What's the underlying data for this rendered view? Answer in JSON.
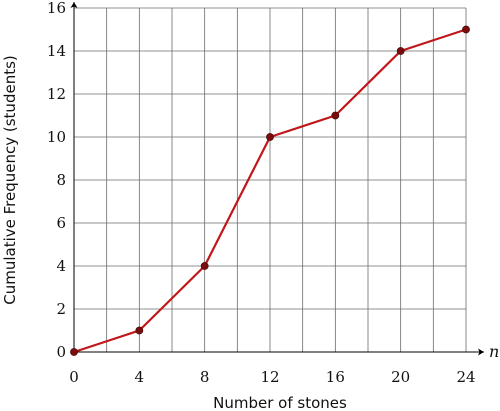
{
  "chart_data": {
    "type": "line",
    "x": [
      0,
      4,
      8,
      12,
      16,
      20,
      24
    ],
    "series": [
      {
        "values": [
          0,
          1,
          4,
          10,
          11,
          14,
          15
        ]
      }
    ],
    "xlabel": "Number of stones",
    "ylabel": "Cumulative Frequency (students)",
    "x_axis_variable": "n",
    "xlim": [
      0,
      24
    ],
    "ylim": [
      0,
      16
    ],
    "x_ticks": [
      0,
      4,
      8,
      12,
      16,
      20,
      24
    ],
    "y_ticks": [
      0,
      2,
      4,
      6,
      8,
      10,
      12,
      14,
      16
    ],
    "grid": true,
    "colors": {
      "line": "#c0171b",
      "marker": "#7a0c0e",
      "grid": "#6b6b6b",
      "axis": "#000000"
    }
  }
}
